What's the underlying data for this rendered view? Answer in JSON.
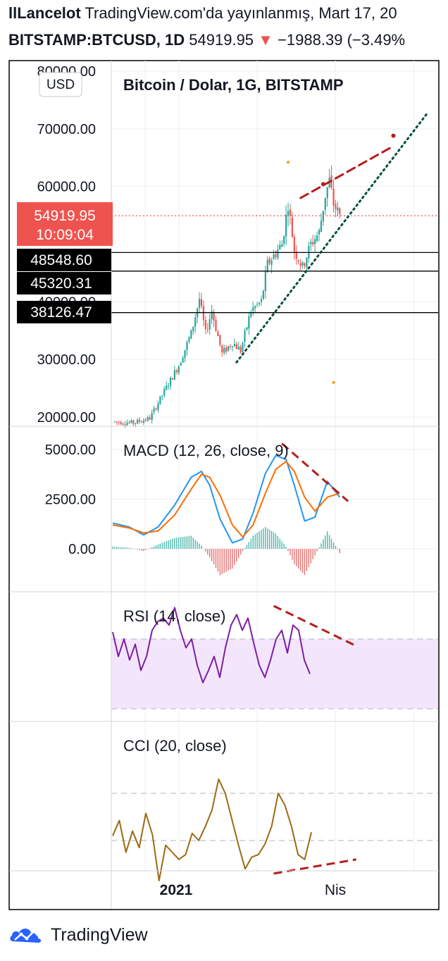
{
  "header": {
    "author": "llLancelot",
    "published_text": "TradingView.com'da yayınlanmış, Mart 17, 20",
    "symbol": "BITSTAMP:BTCUSD, 1D",
    "last_price": "54919.95",
    "arrow": "▼",
    "change": "−1988.39 (−3.49%"
  },
  "main_pane": {
    "title": "Bitcoin / Dolar, 1G, BITSTAMP",
    "currency_button": "USD",
    "y_ticks": [
      "80000.00",
      "70000.00",
      "60000.00",
      "40000.00",
      "30000.00",
      "20000.00"
    ],
    "price_label": "54919.95",
    "countdown": "10:09:04",
    "level_labels": [
      "48548.60",
      "45320.31",
      "38126.47"
    ]
  },
  "macd_pane": {
    "title": "MACD (12, 26, close, 9)",
    "y_ticks": [
      "5000.00",
      "2500.00",
      "0.00"
    ]
  },
  "rsi_pane": {
    "title": "RSI (14, close)"
  },
  "cci_pane": {
    "title": "CCI (20, close)"
  },
  "x_axis": {
    "ticks": [
      "2021",
      "Nis"
    ]
  },
  "footer": {
    "brand": "TradingView"
  },
  "colors": {
    "up": "#26a69a",
    "down": "#ef5350",
    "macd_line": "#2196f3",
    "signal_line": "#ff6d00",
    "rsi": "#7b1fa2",
    "rsi_band": "#f3e5fb",
    "cci": "#9c6a12",
    "cci_band": "#f5efe6",
    "trendline": "#b71c1c",
    "support_line": "#004d40",
    "price_badge": "#ef5350"
  },
  "chart_data": [
    {
      "type": "candlestick",
      "title": "Bitcoin / Dolar, 1G, BITSTAMP",
      "currency": "USD",
      "ylim": [
        18500,
        81000
      ],
      "last_price": 54919.95,
      "horizontal_levels": [
        48548.6,
        45320.31,
        38126.47
      ],
      "swing_closes": [
        {
          "day": 0,
          "close": 19200
        },
        {
          "day": 10,
          "close": 19000
        },
        {
          "day": 18,
          "close": 19800
        },
        {
          "day": 25,
          "close": 24500
        },
        {
          "day": 32,
          "close": 29000
        },
        {
          "day": 38,
          "close": 34500
        },
        {
          "day": 42,
          "close": 40500
        },
        {
          "day": 45,
          "close": 34500
        },
        {
          "day": 48,
          "close": 38500
        },
        {
          "day": 53,
          "close": 31000
        },
        {
          "day": 58,
          "close": 33000
        },
        {
          "day": 62,
          "close": 31500
        },
        {
          "day": 67,
          "close": 38500
        },
        {
          "day": 72,
          "close": 40000
        },
        {
          "day": 75,
          "close": 46500
        },
        {
          "day": 78,
          "close": 48000
        },
        {
          "day": 82,
          "close": 50000
        },
        {
          "day": 85,
          "close": 57000
        },
        {
          "day": 88,
          "close": 49000
        },
        {
          "day": 92,
          "close": 46000
        },
        {
          "day": 96,
          "close": 50000
        },
        {
          "day": 100,
          "close": 52000
        },
        {
          "day": 103,
          "close": 58500
        },
        {
          "day": 105,
          "close": 61000
        },
        {
          "day": 107,
          "close": 57000
        },
        {
          "day": 110,
          "close": 54920
        }
      ],
      "trendlines": [
        {
          "kind": "resistance",
          "points": [
            [
              91,
              58000
            ],
            [
              136,
              67000
            ]
          ]
        },
        {
          "kind": "support",
          "points": [
            [
              60,
              29500
            ],
            [
              152,
              72500
            ]
          ]
        }
      ]
    },
    {
      "type": "line",
      "title": "MACD (12, 26, close, 9)",
      "ylim": [
        -1500,
        5500
      ],
      "series": [
        {
          "name": "MACD",
          "points": [
            [
              0,
              1300
            ],
            [
              8,
              1100
            ],
            [
              15,
              700
            ],
            [
              22,
              1100
            ],
            [
              30,
              2200
            ],
            [
              38,
              3600
            ],
            [
              43,
              3900
            ],
            [
              47,
              3200
            ],
            [
              52,
              1500
            ],
            [
              58,
              300
            ],
            [
              63,
              500
            ],
            [
              68,
              1800
            ],
            [
              74,
              3800
            ],
            [
              79,
              4700
            ],
            [
              84,
              4500
            ],
            [
              88,
              3200
            ],
            [
              93,
              1400
            ],
            [
              98,
              1600
            ],
            [
              104,
              3400
            ],
            [
              110,
              2600
            ]
          ]
        },
        {
          "name": "signal",
          "points": [
            [
              0,
              1200
            ],
            [
              8,
              1050
            ],
            [
              15,
              800
            ],
            [
              22,
              900
            ],
            [
              30,
              1700
            ],
            [
              38,
              3000
            ],
            [
              43,
              3750
            ],
            [
              47,
              3600
            ],
            [
              52,
              2700
            ],
            [
              58,
              1200
            ],
            [
              63,
              600
            ],
            [
              68,
              1200
            ],
            [
              74,
              2800
            ],
            [
              79,
              4000
            ],
            [
              84,
              4400
            ],
            [
              88,
              3900
            ],
            [
              93,
              2600
            ],
            [
              98,
              1900
            ],
            [
              104,
              2600
            ],
            [
              110,
              2800
            ]
          ]
        }
      ],
      "trendlines": [
        {
          "kind": "bearish",
          "points": [
            [
              82,
              5300
            ],
            [
              114,
              2400
            ]
          ]
        }
      ]
    },
    {
      "type": "line",
      "title": "RSI (14, close)",
      "band": [
        30,
        70
      ],
      "ylim": [
        25,
        92
      ],
      "series": [
        {
          "name": "RSI",
          "points": [
            [
              0,
              74
            ],
            [
              4,
              60
            ],
            [
              8,
              70
            ],
            [
              12,
              58
            ],
            [
              16,
              67
            ],
            [
              20,
              52
            ],
            [
              24,
              60
            ],
            [
              28,
              75
            ],
            [
              32,
              80
            ],
            [
              36,
              82
            ],
            [
              40,
              78
            ],
            [
              44,
              88
            ],
            [
              48,
              75
            ],
            [
              52,
              65
            ],
            [
              56,
              70
            ],
            [
              60,
              55
            ],
            [
              64,
              45
            ],
            [
              68,
              52
            ],
            [
              72,
              60
            ],
            [
              76,
              48
            ],
            [
              80,
              65
            ],
            [
              84,
              78
            ],
            [
              88,
              84
            ],
            [
              92,
              75
            ],
            [
              96,
              82
            ],
            [
              100,
              68
            ],
            [
              104,
              55
            ],
            [
              108,
              48
            ],
            [
              112,
              58
            ],
            [
              116,
              70
            ],
            [
              120,
              75
            ],
            [
              124,
              62
            ],
            [
              128,
              78
            ],
            [
              132,
              75
            ],
            [
              136,
              58
            ],
            [
              140,
              50
            ]
          ]
        }
      ],
      "trendlines": [
        {
          "kind": "bearish",
          "points": [
            [
              78,
              89
            ],
            [
              118,
              66
            ]
          ]
        }
      ]
    },
    {
      "type": "line",
      "title": "CCI (20, close)",
      "band": [
        -100,
        100
      ],
      "ylim": [
        -200,
        290
      ],
      "series": [
        {
          "name": "CCI",
          "points": [
            [
              0,
              80
            ],
            [
              4,
              15
            ],
            [
              8,
              150
            ],
            [
              12,
              60
            ],
            [
              16,
              130
            ],
            [
              20,
              -15
            ],
            [
              24,
              75
            ],
            [
              28,
              270
            ],
            [
              32,
              120
            ],
            [
              36,
              150
            ],
            [
              40,
              180
            ],
            [
              44,
              160
            ],
            [
              48,
              70
            ],
            [
              52,
              100
            ],
            [
              56,
              40
            ],
            [
              60,
              -30
            ],
            [
              64,
              -160
            ],
            [
              68,
              -100
            ],
            [
              72,
              10
            ],
            [
              76,
              120
            ],
            [
              80,
              220
            ],
            [
              84,
              170
            ],
            [
              88,
              160
            ],
            [
              92,
              115
            ],
            [
              96,
              40
            ],
            [
              100,
              -100
            ],
            [
              104,
              -50
            ],
            [
              108,
              40
            ],
            [
              112,
              160
            ],
            [
              116,
              180
            ],
            [
              120,
              65
            ]
          ]
        }
      ],
      "trendlines": [
        {
          "kind": "bearish",
          "points": [
            [
              78,
              240
            ],
            [
              118,
              180
            ]
          ]
        }
      ]
    }
  ]
}
